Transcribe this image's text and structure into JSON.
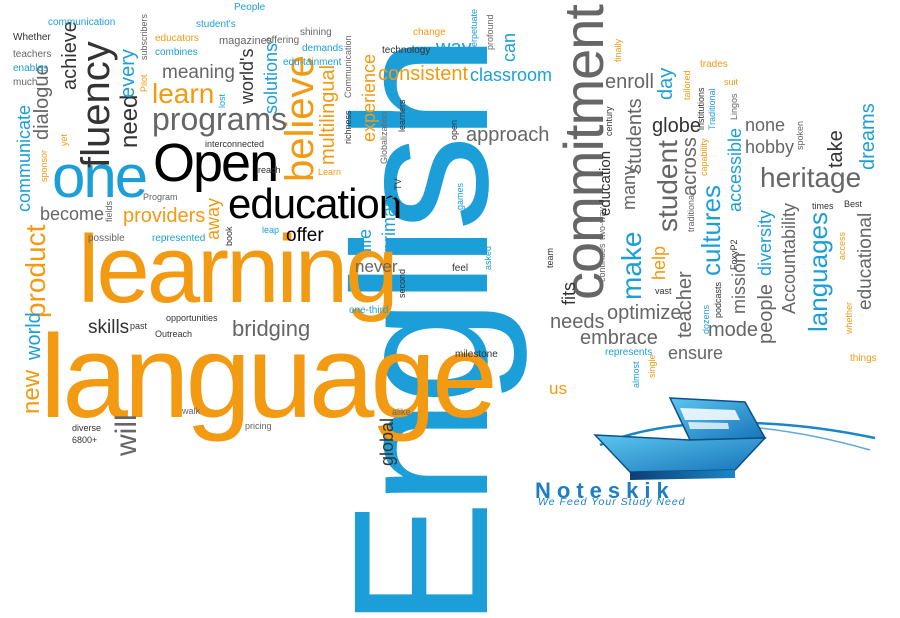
{
  "wordcloud": {
    "english": "English",
    "language": "language",
    "learning": "learning",
    "commitment": "commitment",
    "one": "one",
    "open": "Open",
    "education": "education",
    "fluency": "fluency",
    "believe": "believe",
    "programs": "programs",
    "learn": "learn",
    "providers": "providers",
    "offer": "offer",
    "product": "product",
    "will": "will",
    "new": "new",
    "world": "world",
    "skills": "skills",
    "bridging": "bridging",
    "communicate": "communicate",
    "dialogue": "dialogue",
    "achieve": "achieve",
    "need": "need",
    "every": "every",
    "meaning": "meaning",
    "worlds": "world's",
    "solutions": "solutions",
    "multilingual": "multilingual",
    "experience": "experience",
    "consistent": "consistent",
    "classroom": "classroom",
    "way": "way",
    "can": "can",
    "approach": "approach",
    "enroll": "enroll",
    "day": "day",
    "globe": "globe",
    "many": "many",
    "students": "students",
    "student": "student",
    "across": "across",
    "cultures": "cultures",
    "make": "make",
    "languages": "languages",
    "heritage": "heritage",
    "none": "none",
    "hobby": "hobby",
    "take": "take",
    "dreams": "dreams",
    "educational": "educational",
    "accountability": "Accountability",
    "mission": "mission",
    "diversity": "diversity",
    "accessible": "accessible",
    "people": "people",
    "mode": "mode",
    "ensure": "ensure",
    "embrace": "embrace",
    "optimize": "optimize",
    "needs": "needs",
    "fits": "fits",
    "help": "help",
    "teacher": "teacher",
    "us": "us",
    "global": "global",
    "never": "never",
    "primary": "primary",
    "life": "life",
    "away": "away",
    "become": "become",
    "represented": "represented",
    "possible": "possible",
    "fields": "fields",
    "sponsor": "sponsor",
    "yet": "yet",
    "much": "much",
    "enables": "enables",
    "teachers": "teachers",
    "whether_top": "Whether",
    "communication": "communication",
    "students_small": "student's",
    "educators": "educators",
    "combines": "combines",
    "subscribers": "subscribers",
    "magazines": "magazines",
    "offering": "offering",
    "people_small": "People",
    "shining": "shining",
    "demands": "demands",
    "edu_tainment": "edu-tainment",
    "communication_cap": "Communication",
    "richness": "richness",
    "technology": "technology",
    "change": "change",
    "perpetuate": "perpetuate",
    "profound": "profound",
    "pilot": "Pilot",
    "lost": "lost",
    "interconnected": "interconnected",
    "reach": "reach",
    "learn_small": "Learn",
    "program": "Program",
    "book": "book",
    "leap": "leap",
    "second": "second",
    "tv": "TV",
    "globalization": "Globalization",
    "learners": "learners",
    "open_small": "open",
    "games": "games",
    "feel": "feel",
    "asked": "asked",
    "team": "team",
    "one_third": "one-third",
    "milestone": "milestone",
    "alike": "alike",
    "pricing": "pricing",
    "past": "past",
    "opportunities": "opportunities",
    "outreach": "Outreach",
    "walk": "walk",
    "diverse": "diverse",
    "num_6800": "6800+",
    "continues": "continues",
    "two_way": "two-way",
    "century": "century",
    "finally": "finally",
    "tailored": "tailored",
    "trades": "trades",
    "institutions": "institutions",
    "traditional_cap": "Traditional",
    "suit": "suit",
    "lingos": "Lingos",
    "capability": "capability",
    "spoken": "spoken",
    "times": "times",
    "best": "Best",
    "access": "access",
    "whether_small": "whether",
    "things": "things",
    "foxyp2": "FoxyP2",
    "traditional": "traditional",
    "vast": "vast",
    "podcasts": "podcasts",
    "dozens": "dozens",
    "represents": "represents",
    "almost": "almost",
    "single": "single"
  },
  "brand": {
    "name": "Noteskik",
    "tagline": "We Feed Your Study Need"
  },
  "colors": {
    "orange": "#f29a12",
    "blue": "#1c9fd8",
    "grey": "#666666",
    "black": "#000000",
    "brand": "#1c7fc4"
  }
}
